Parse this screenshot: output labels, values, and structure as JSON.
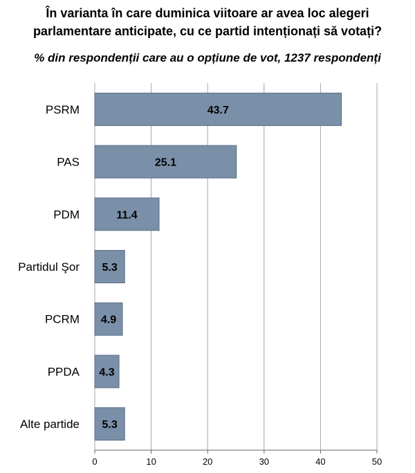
{
  "chart_data": {
    "type": "bar",
    "orientation": "horizontal",
    "title": "În varianta în care duminica viitoare ar avea loc alegeri parlamentare anticipate, cu ce partid intenționați să votați?",
    "title_lines": [
      "În varianta în care duminica viitoare ar avea loc alegeri",
      "parlamentare anticipate, cu ce partid intenționați să votați?"
    ],
    "subtitle": "% din respondenții care au o opțiune de vot, 1237 respondenți",
    "categories": [
      "PSRM",
      "PAS",
      "PDM",
      "Partidul Şor",
      "PCRM",
      "PPDA",
      "Alte partide"
    ],
    "values": [
      43.7,
      25.1,
      11.4,
      5.3,
      4.9,
      4.3,
      5.3
    ],
    "value_labels": [
      "43.7",
      "25.1",
      "11.4",
      "5.3",
      "4.9",
      "4.3",
      "5.3"
    ],
    "xlim": [
      0,
      50
    ],
    "xticks": [
      0,
      10,
      20,
      30,
      40,
      50
    ],
    "xlabel": "",
    "ylabel": "",
    "grid": true,
    "bar_color": "#7a8fa8",
    "bar_edge_color": "#5a6f88",
    "grid_color": "#a6a6a6"
  }
}
